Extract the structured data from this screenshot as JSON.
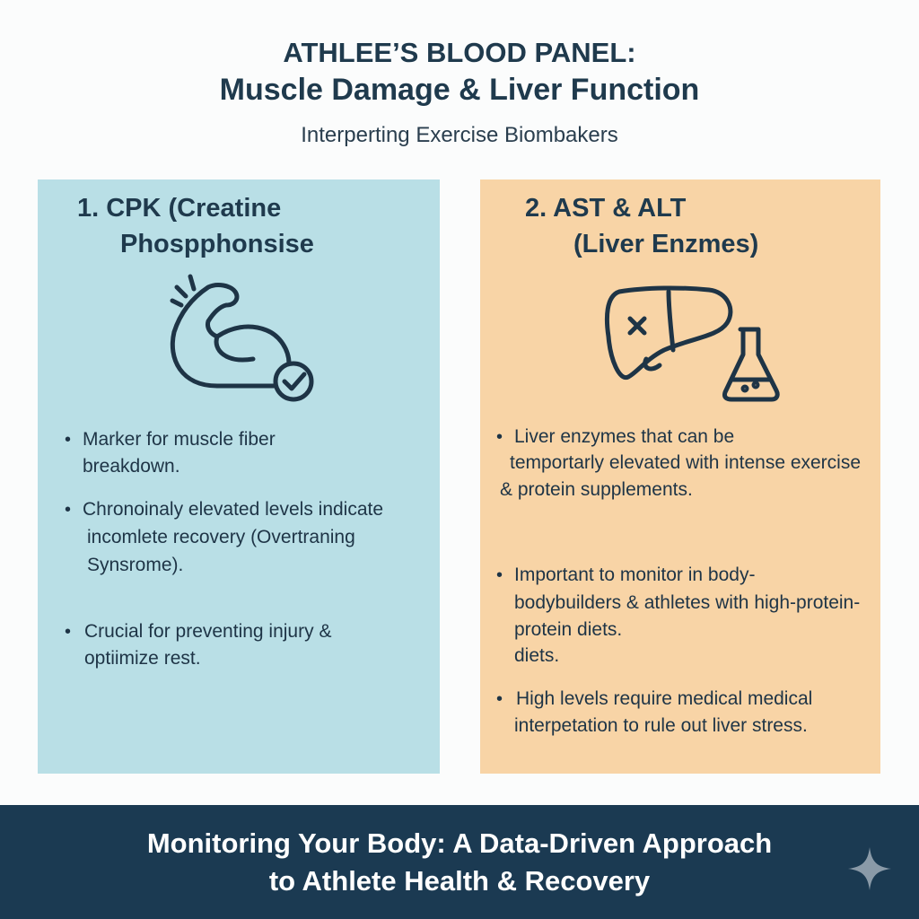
{
  "header": {
    "title_line1": "ATHLEE’S BLOOD PANEL:",
    "title_line2": "Muscle Damage & Liver Function",
    "subtitle": "Interperting Exercise Biombakers"
  },
  "panels": [
    {
      "heading_line1": "1. CPK (Creatine",
      "heading_line2": "Phospphonsise",
      "icon": "flexed-arm-check-icon",
      "color": "#b9dfe6",
      "lines": [
        "Marker for muscle fiber",
        "breakdown.",
        "Chronoinaly elevated levels indicate",
        "incomlete recovery (Overtraning",
        "Synsrome).",
        "Crucial for preventing injury &",
        "optiimize rest."
      ]
    },
    {
      "heading_line1": "2. AST & ALT",
      "heading_line2": "(Liver Enzmes)",
      "icon": "liver-flask-icon",
      "color": "#f8d4a6",
      "lines": [
        "Liver enzymes that can be",
        "temportarly elevated with intense exercise",
        "& protein supplements.",
        "Important to monitor in body-",
        "bodybuilders & athletes with high-protein-",
        "protein diets.",
        "diets.",
        "High levels require medical medical",
        "interpetation to rule out liver stress."
      ]
    }
  ],
  "footer": {
    "line1": "Monitoring Your Body: A Data-Driven Approach",
    "line2": "to Athlete Health & Recovery",
    "icon": "sparkle-icon",
    "color": "#1b3a52"
  }
}
